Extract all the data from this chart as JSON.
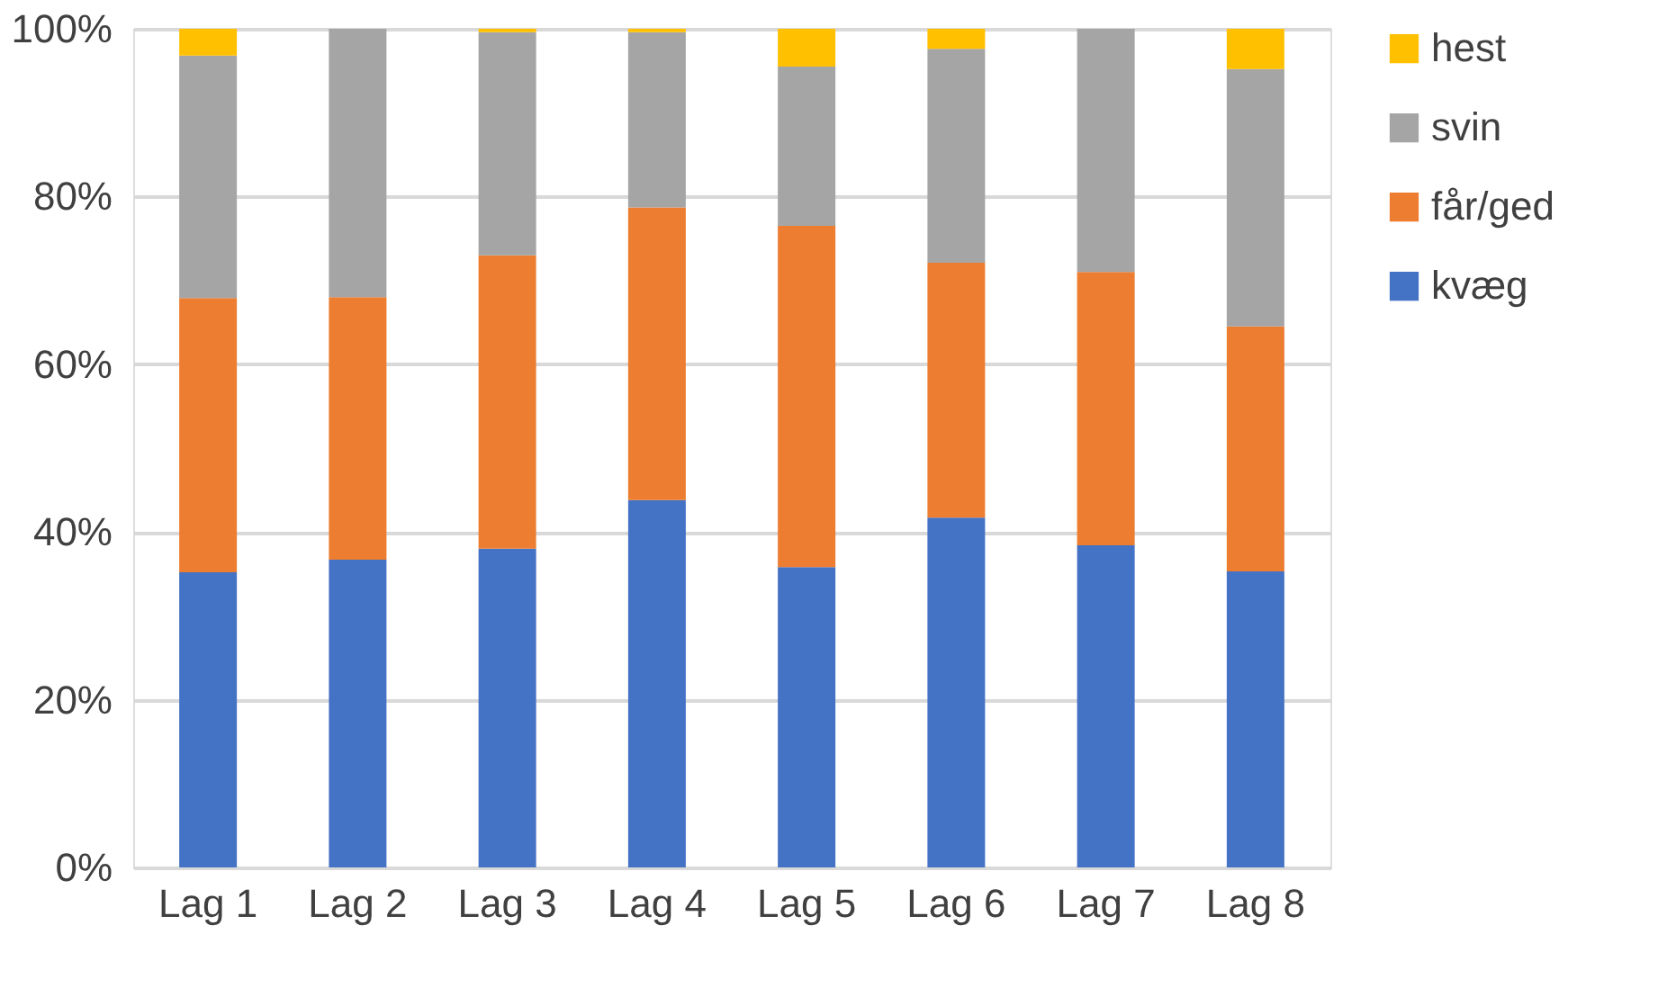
{
  "chart_data": {
    "type": "bar",
    "stacked": true,
    "categories": [
      "Lag 1",
      "Lag 2",
      "Lag 3",
      "Lag 4",
      "Lag 5",
      "Lag 6",
      "Lag 7",
      "Lag 8"
    ],
    "series": [
      {
        "name": "kvæg",
        "color": "#4472c4",
        "values": [
          35.2,
          36.7,
          38.0,
          43.8,
          35.8,
          41.7,
          38.4,
          35.3
        ]
      },
      {
        "name": "får/ged",
        "color": "#ed7d31",
        "values": [
          32.7,
          31.3,
          35.0,
          34.9,
          40.7,
          30.4,
          32.6,
          29.2
        ]
      },
      {
        "name": "svin",
        "color": "#a5a5a5",
        "values": [
          28.9,
          32.0,
          26.6,
          20.9,
          19.0,
          25.5,
          29.0,
          30.7
        ]
      },
      {
        "name": "hest",
        "color": "#ffc000",
        "values": [
          3.2,
          0,
          0.4,
          0.4,
          4.5,
          2.4,
          0,
          4.8
        ]
      }
    ],
    "ylim": [
      0,
      100
    ],
    "yticks": [
      {
        "value": 0,
        "label": "0%"
      },
      {
        "value": 20,
        "label": "20%"
      },
      {
        "value": 40,
        "label": "40%"
      },
      {
        "value": 60,
        "label": "60%"
      },
      {
        "value": 80,
        "label": "80%"
      },
      {
        "value": 100,
        "label": "100%"
      }
    ],
    "grid": "y",
    "legend": "right"
  }
}
